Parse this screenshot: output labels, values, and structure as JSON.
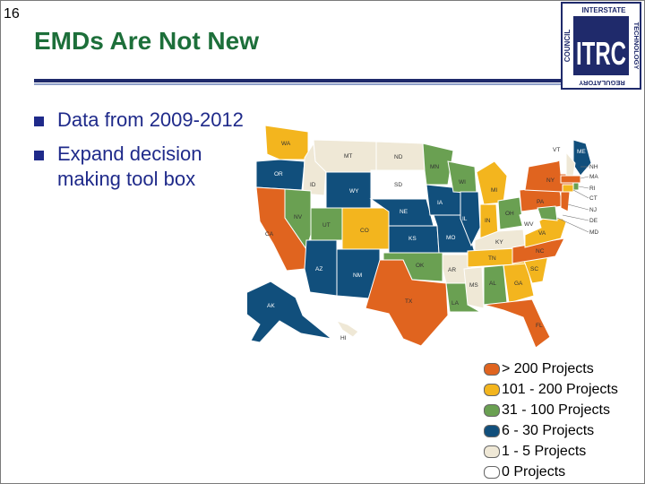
{
  "slide": {
    "number": "16",
    "title": "EMDs Are Not New"
  },
  "logo": {
    "letters": "ITRC",
    "top_text": "INTERSTATE",
    "right_text": "TECHNOLOGY",
    "left_text": "COUNCIL",
    "bottom_text": "REGULATORY",
    "colors": {
      "blue": "#1f2a6b",
      "green": "#1d6f3a"
    }
  },
  "bullets": [
    {
      "text": "Data from 2009-2012"
    },
    {
      "text": "Expand decision making tool box"
    }
  ],
  "colors": {
    "c200": "#e0641f",
    "c101": "#f3b51e",
    "c31": "#6aa052",
    "c6": "#114f7c",
    "c1": "#efe8d6",
    "c0": "#ffffff"
  },
  "legend": [
    {
      "label": "> 200 Projects",
      "color": "#e0641f"
    },
    {
      "label": "101 - 200 Projects",
      "color": "#f3b51e"
    },
    {
      "label": "31 - 100 Projects",
      "color": "#6aa052"
    },
    {
      "label": "6 - 30 Projects",
      "color": "#114f7c"
    },
    {
      "label": "1 - 5 Projects",
      "color": "#efe8d6"
    },
    {
      "label": "0 Projects",
      "color": "#ffffff"
    }
  ],
  "states": {
    "WA": "WA",
    "OR": "OR",
    "CA": "CA",
    "ID": "ID",
    "NV": "NV",
    "MT": "MT",
    "WY": "WY",
    "UT": "UT",
    "AZ": "AZ",
    "CO": "CO",
    "NM": "NM",
    "ND": "ND",
    "SD": "SD",
    "NE": "NE",
    "KS": "KS",
    "OK": "OK",
    "TX": "TX",
    "MN": "MN",
    "IA": "IA",
    "MO": "MO",
    "AR": "AR",
    "LA": "LA",
    "WI": "WI",
    "IL": "IL",
    "MS": "MS",
    "MI": "MI",
    "IN": "IN",
    "KY": "KY",
    "TN": "TN",
    "AL": "AL",
    "OH": "OH",
    "GA": "GA",
    "FL": "FL",
    "SC": "SC",
    "NC": "NC",
    "VA": "VA",
    "WV": "WV",
    "PA": "PA",
    "NY": "NY",
    "ME": "ME",
    "VT": "VT",
    "NH": "NH",
    "MA": "MA",
    "RI": "RI",
    "CT": "CT",
    "NJ": "NJ",
    "DE": "DE",
    "MD": "MD",
    "AK": "AK",
    "HI": "HI"
  }
}
